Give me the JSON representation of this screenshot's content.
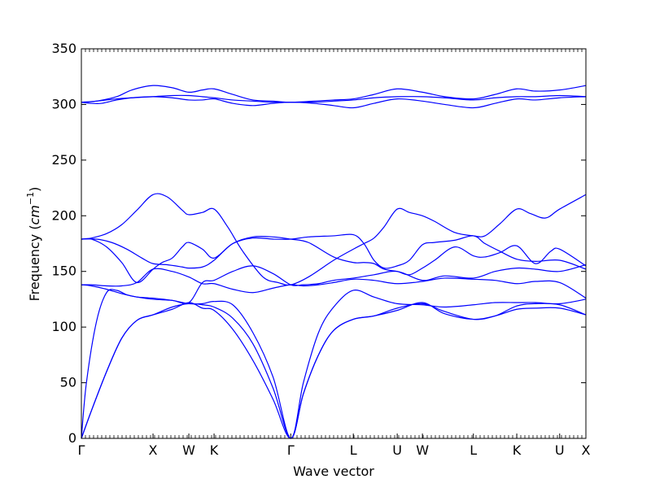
{
  "chart_data": {
    "type": "line",
    "title": "",
    "xlabel": "Wave vector",
    "ylabel_text": "Frequency (",
    "ylabel_unit_base": "cm",
    "ylabel_unit_exp": "−1",
    "ylabel_close": ")",
    "ylim": [
      0,
      350
    ],
    "yticks": [
      0,
      50,
      100,
      150,
      200,
      250,
      300,
      350
    ],
    "xlim": [
      0,
      1
    ],
    "high_symmetry_points": [
      {
        "label": "Γ",
        "x": 0.0
      },
      {
        "label": "X",
        "x": 0.142
      },
      {
        "label": "W",
        "x": 0.213
      },
      {
        "label": "K",
        "x": 0.263
      },
      {
        "label": "Γ",
        "x": 0.415
      },
      {
        "label": "L",
        "x": 0.539
      },
      {
        "label": "U",
        "x": 0.626
      },
      {
        "label": "W",
        "x": 0.676
      },
      {
        "label": "L",
        "x": 0.777
      },
      {
        "label": "K",
        "x": 0.863
      },
      {
        "label": "U",
        "x": 0.948
      },
      {
        "label": "X",
        "x": 1.0
      }
    ],
    "grid": false,
    "line_color": "#0000ff",
    "series": [
      {
        "x": [
          0.0,
          0.02,
          0.05,
          0.08,
          0.11,
          0.142,
          0.18,
          0.213,
          0.24,
          0.263,
          0.3,
          0.34,
          0.38,
          0.415,
          0.44,
          0.47,
          0.5,
          0.539,
          0.58,
          0.626,
          0.676,
          0.72,
          0.777,
          0.82,
          0.863,
          0.9,
          0.948,
          1.0
        ],
        "values": [
          0,
          25,
          60,
          90,
          106,
          111,
          116,
          122,
          117,
          115,
          98,
          70,
          35,
          0,
          40,
          75,
          97,
          107,
          110,
          115,
          122,
          112,
          107,
          110,
          116,
          117,
          117,
          111
        ]
      },
      {
        "x": [
          0.0,
          0.02,
          0.05,
          0.08,
          0.11,
          0.142,
          0.18,
          0.213,
          0.24,
          0.263,
          0.3,
          0.34,
          0.38,
          0.415,
          0.44,
          0.47,
          0.5,
          0.539,
          0.58,
          0.626,
          0.676,
          0.72,
          0.777,
          0.82,
          0.863,
          0.9,
          0.948,
          1.0
        ],
        "values": [
          0,
          25,
          60,
          90,
          106,
          111,
          118,
          121,
          120,
          118,
          108,
          85,
          45,
          0,
          40,
          75,
          97,
          107,
          110,
          117,
          121,
          114,
          107,
          110,
          119,
          121,
          120,
          111
        ]
      },
      {
        "x": [
          0.0,
          0.01,
          0.03,
          0.05,
          0.07,
          0.09,
          0.11,
          0.142,
          0.18,
          0.213,
          0.24,
          0.263,
          0.3,
          0.34,
          0.38,
          0.415,
          0.44,
          0.47,
          0.5,
          0.539,
          0.58,
          0.626,
          0.676,
          0.72,
          0.777,
          0.82,
          0.863,
          0.9,
          0.948,
          1.0
        ],
        "values": [
          0,
          50,
          105,
          131,
          133,
          129,
          127,
          126,
          124,
          121,
          121,
          123,
          120,
          95,
          55,
          0,
          50,
          95,
          118,
          133,
          127,
          121,
          120,
          118,
          120,
          122,
          122,
          122,
          121,
          125
        ]
      },
      {
        "x": [
          0.0,
          0.02,
          0.05,
          0.08,
          0.11,
          0.142,
          0.18,
          0.213,
          0.24,
          0.263,
          0.3,
          0.34,
          0.38,
          0.415,
          0.44,
          0.47,
          0.5,
          0.539,
          0.58,
          0.626,
          0.676,
          0.72,
          0.777,
          0.82,
          0.863,
          0.9,
          0.948,
          1.0
        ],
        "values": [
          138,
          138,
          137,
          137,
          140,
          152,
          150,
          145,
          139,
          139,
          134,
          131,
          135,
          138,
          137,
          138,
          140,
          143,
          142,
          139,
          141,
          144,
          143,
          142,
          139,
          141,
          140,
          126
        ]
      },
      {
        "x": [
          0.0,
          0.02,
          0.05,
          0.08,
          0.11,
          0.142,
          0.18,
          0.213,
          0.24,
          0.263,
          0.3,
          0.34,
          0.38,
          0.415,
          0.44,
          0.47,
          0.5,
          0.539,
          0.58,
          0.626,
          0.676,
          0.72,
          0.777,
          0.82,
          0.863,
          0.9,
          0.948,
          1.0
        ],
        "values": [
          138,
          137,
          134,
          130,
          127,
          125,
          124,
          122,
          140,
          142,
          150,
          155,
          148,
          138,
          138,
          139,
          142,
          144,
          147,
          150,
          142,
          146,
          144,
          150,
          153,
          152,
          150,
          156
        ]
      },
      {
        "x": [
          0.0,
          0.02,
          0.05,
          0.08,
          0.11,
          0.142,
          0.16,
          0.18,
          0.2,
          0.213,
          0.24,
          0.263,
          0.3,
          0.34,
          0.38,
          0.415,
          0.45,
          0.5,
          0.539,
          0.56,
          0.58,
          0.6,
          0.626,
          0.65,
          0.676,
          0.7,
          0.74,
          0.777,
          0.8,
          0.83,
          0.863,
          0.9,
          0.948,
          1.0
        ],
        "values": [
          179,
          179,
          172,
          158,
          140,
          152,
          158,
          162,
          172,
          176,
          170,
          162,
          175,
          180,
          179,
          179,
          181,
          182,
          183,
          175,
          160,
          153,
          155,
          160,
          174,
          176,
          178,
          182,
          175,
          168,
          161,
          159,
          160,
          152
        ]
      },
      {
        "x": [
          0.0,
          0.03,
          0.06,
          0.09,
          0.12,
          0.142,
          0.17,
          0.2,
          0.213,
          0.24,
          0.263,
          0.3,
          0.34,
          0.38,
          0.415,
          0.45,
          0.5,
          0.539,
          0.56,
          0.58,
          0.6,
          0.626,
          0.65,
          0.676,
          0.7,
          0.74,
          0.777,
          0.8,
          0.83,
          0.863,
          0.9,
          0.93,
          0.948,
          1.0
        ],
        "values": [
          179,
          179,
          176,
          170,
          162,
          157,
          156,
          154,
          153,
          154,
          160,
          175,
          181,
          181,
          179,
          176,
          163,
          158,
          158,
          157,
          152,
          150,
          147,
          153,
          160,
          172,
          164,
          163,
          167,
          173,
          157,
          168,
          170,
          155
        ]
      },
      {
        "x": [
          0.0,
          0.02,
          0.05,
          0.08,
          0.11,
          0.142,
          0.17,
          0.2,
          0.213,
          0.24,
          0.263,
          0.29,
          0.32,
          0.36,
          0.39,
          0.415,
          0.45,
          0.5,
          0.539,
          0.56,
          0.58,
          0.6,
          0.626,
          0.65,
          0.676,
          0.7,
          0.74,
          0.777,
          0.8,
          0.83,
          0.863,
          0.89,
          0.92,
          0.948,
          1.0
        ],
        "values": [
          179,
          180,
          184,
          192,
          205,
          219,
          217,
          205,
          201,
          203,
          206,
          190,
          168,
          145,
          140,
          138,
          145,
          160,
          170,
          175,
          180,
          190,
          206,
          203,
          200,
          195,
          185,
          182,
          182,
          193,
          206,
          202,
          198,
          206,
          219
        ]
      },
      {
        "x": [
          0.0,
          0.02,
          0.04,
          0.07,
          0.1,
          0.142,
          0.18,
          0.213,
          0.24,
          0.263,
          0.3,
          0.34,
          0.38,
          0.415,
          0.46,
          0.5,
          0.539,
          0.58,
          0.626,
          0.676,
          0.72,
          0.777,
          0.82,
          0.863,
          0.9,
          0.948,
          1.0
        ],
        "values": [
          302,
          301,
          301,
          304,
          306,
          307,
          306,
          304,
          304,
          305,
          301,
          299,
          301,
          302,
          301,
          299,
          297,
          301,
          305,
          303,
          300,
          297,
          301,
          305,
          304,
          306,
          307
        ]
      },
      {
        "x": [
          0.0,
          0.03,
          0.07,
          0.1,
          0.142,
          0.18,
          0.213,
          0.24,
          0.263,
          0.3,
          0.34,
          0.38,
          0.415,
          0.46,
          0.5,
          0.539,
          0.58,
          0.626,
          0.676,
          0.72,
          0.777,
          0.82,
          0.863,
          0.9,
          0.948,
          1.0
        ],
        "values": [
          302,
          303,
          305,
          306,
          307,
          308,
          308,
          307,
          306,
          304,
          303,
          302,
          302,
          302,
          303,
          304,
          306,
          307,
          307,
          306,
          304,
          306,
          307,
          307,
          308,
          307
        ]
      },
      {
        "x": [
          0.0,
          0.03,
          0.07,
          0.1,
          0.142,
          0.18,
          0.213,
          0.24,
          0.263,
          0.3,
          0.34,
          0.38,
          0.415,
          0.46,
          0.5,
          0.539,
          0.58,
          0.626,
          0.676,
          0.72,
          0.777,
          0.82,
          0.863,
          0.9,
          0.948,
          1.0
        ],
        "values": [
          302,
          303,
          307,
          313,
          317,
          315,
          311,
          313,
          314,
          309,
          304,
          303,
          302,
          303,
          304,
          305,
          309,
          314,
          311,
          307,
          305,
          309,
          314,
          312,
          313,
          317
        ]
      }
    ]
  }
}
